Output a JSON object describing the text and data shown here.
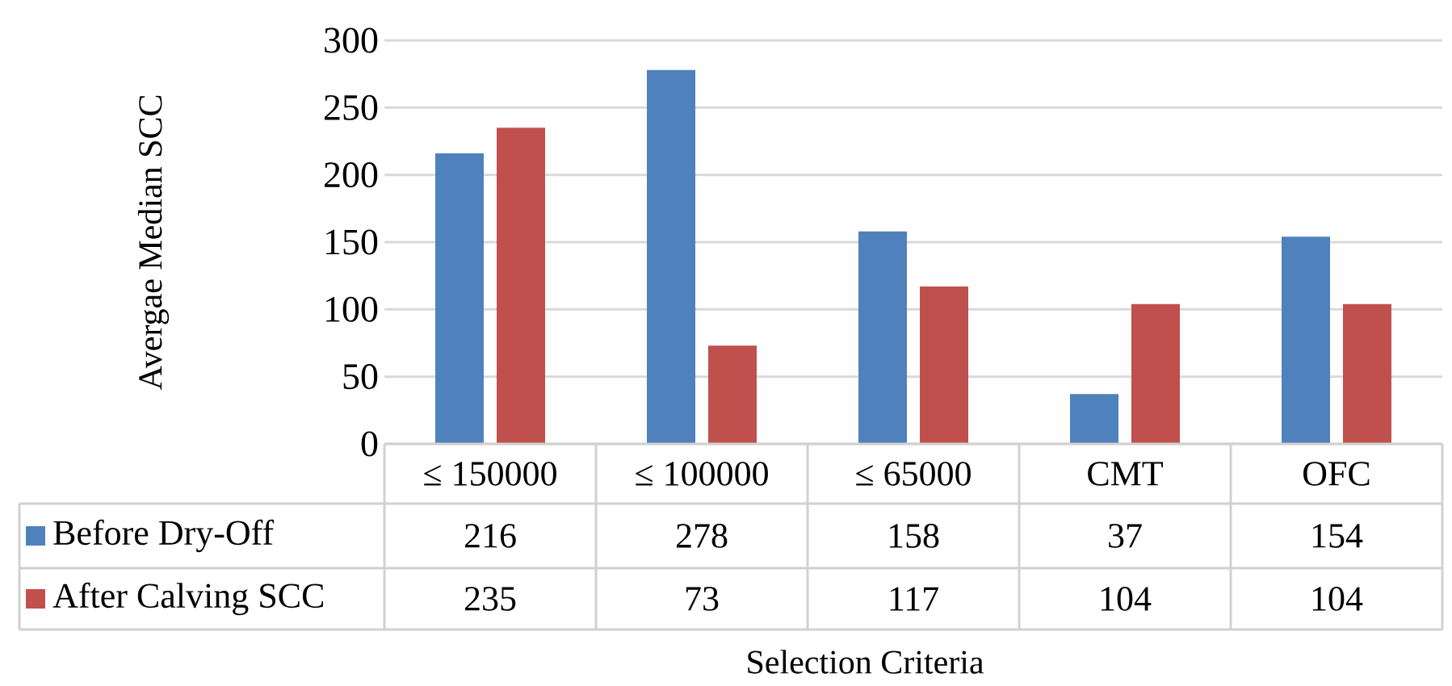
{
  "chart_data": {
    "type": "bar",
    "xlabel": "Selection Criteria",
    "ylabel": "Avergae Median SCC",
    "categories": [
      "≤ 150000",
      "≤ 100000",
      "≤ 65000",
      "CMT",
      "OFC"
    ],
    "series": [
      {
        "name": "Before Dry-Off",
        "color": "#4f81bd",
        "values": [
          216,
          278,
          158,
          37,
          154
        ]
      },
      {
        "name": "After Calving SCC",
        "color": "#c0504d",
        "values": [
          235,
          73,
          117,
          104,
          104
        ]
      }
    ],
    "ylim": [
      0,
      300
    ],
    "yticks": [
      0,
      50,
      100,
      150,
      200,
      250,
      300
    ],
    "grid": "y",
    "data_labels": true,
    "legend": "bottom"
  }
}
